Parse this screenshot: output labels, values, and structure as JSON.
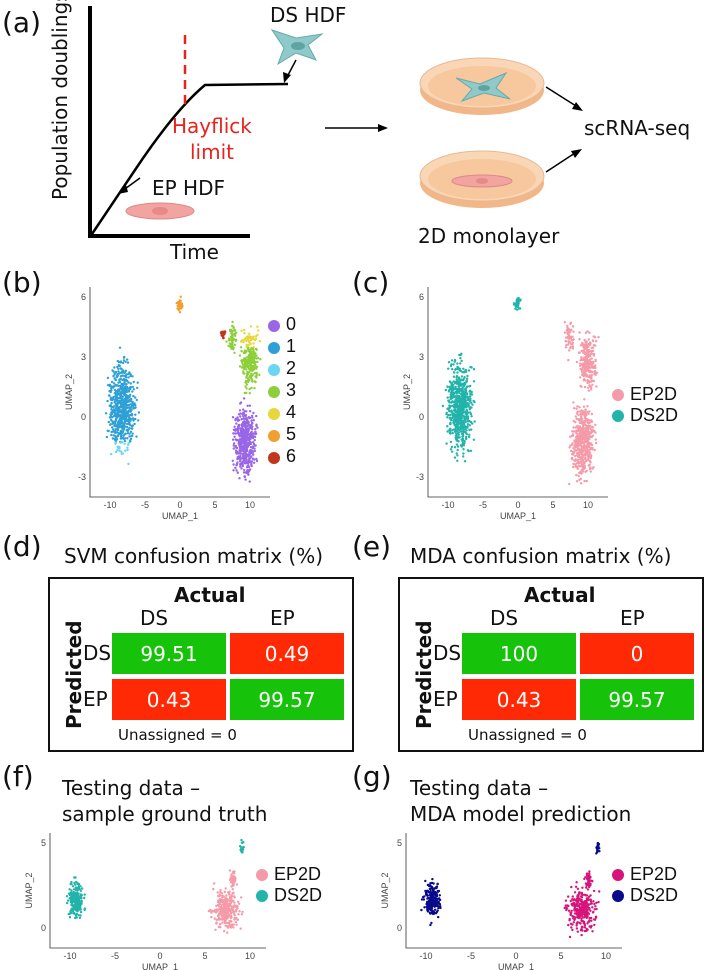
{
  "panel_labels": {
    "a": "(a)",
    "b": "(b)",
    "c": "(c)",
    "d": "(d)",
    "e": "(e)",
    "f": "(f)",
    "g": "(g)"
  },
  "panel_a": {
    "ylabel": "Population doublings",
    "xlabel": "Time",
    "limit_line1": "Hayflick",
    "limit_line2": "limit",
    "ep_hdf": "EP HDF",
    "ds_hdf": "DS HDF",
    "scrna": "scRNA-seq",
    "monolayer": "2D monolayer",
    "colors": {
      "red": "#e8231b",
      "cell": "#8fc9c9",
      "cell_red": "#f3a3a0",
      "dish": "#f7c89d"
    }
  },
  "umap_axes": {
    "x": "UMAP_1",
    "y": "UMAP_2",
    "xticks": [
      "-10",
      "-5",
      "0",
      "5",
      "10"
    ],
    "yticks_bc": [
      "6",
      "3",
      "0",
      "-3"
    ],
    "yticks_fg": [
      "5",
      "0"
    ]
  },
  "panel_b": {
    "clusters": [
      {
        "label": "0",
        "color": "#9966e6"
      },
      {
        "label": "1",
        "color": "#2ea0d6"
      },
      {
        "label": "2",
        "color": "#6ad6f0"
      },
      {
        "label": "3",
        "color": "#8ccf3a"
      },
      {
        "label": "4",
        "color": "#e6d83a"
      },
      {
        "label": "5",
        "color": "#f0a030"
      },
      {
        "label": "6",
        "color": "#c0381c"
      }
    ]
  },
  "panel_c": {
    "legend": [
      {
        "label": "EP2D",
        "color": "#f59aa8"
      },
      {
        "label": "DS2D",
        "color": "#22b3aa"
      }
    ]
  },
  "svm": {
    "title": "SVM confusion matrix (%)",
    "actual": "Actual",
    "predicted": "Predicted",
    "col": [
      "DS",
      "EP"
    ],
    "row": [
      "DS",
      "EP"
    ],
    "values": [
      [
        "99.51",
        "0.49"
      ],
      [
        "0.43",
        "99.57"
      ]
    ],
    "unassigned": "Unassigned = 0"
  },
  "mda": {
    "title": "MDA confusion matrix (%)",
    "actual": "Actual",
    "predicted": "Predicted",
    "col": [
      "DS",
      "EP"
    ],
    "row": [
      "DS",
      "EP"
    ],
    "values": [
      [
        "100",
        "0"
      ],
      [
        "0.43",
        "99.57"
      ]
    ],
    "unassigned": "Unassigned = 0"
  },
  "panel_f": {
    "title1": "Testing data –",
    "title2": "sample ground truth",
    "legend": [
      {
        "label": "EP2D",
        "color": "#f59aa8"
      },
      {
        "label": "DS2D",
        "color": "#22b3aa"
      }
    ]
  },
  "panel_g": {
    "title1": "Testing data –",
    "title2": "MDA model prediction",
    "legend": [
      {
        "label": "EP2D",
        "color": "#d6147a"
      },
      {
        "label": "DS2D",
        "color": "#0a0a8c"
      }
    ]
  }
}
